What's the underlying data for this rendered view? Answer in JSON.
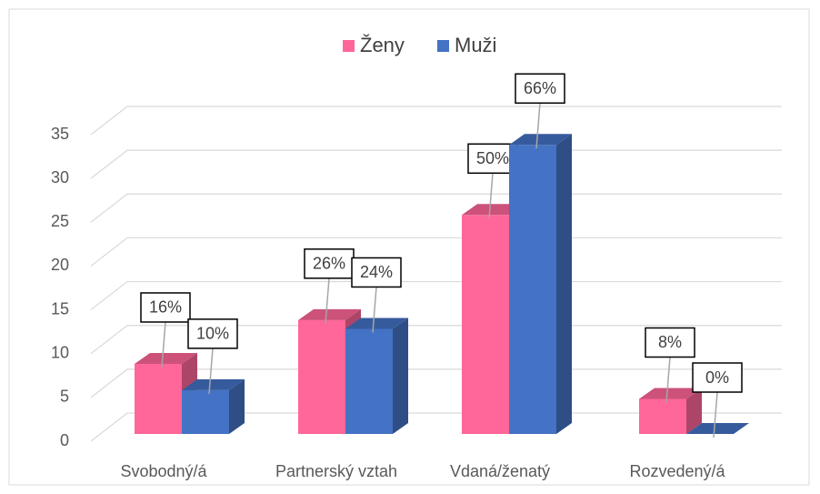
{
  "chart_data": {
    "type": "bar3d",
    "categories": [
      "Svobodný/á",
      "Partnerský vztah",
      "Vdaná/ženatý",
      "Rozvedený/á"
    ],
    "series": [
      {
        "name": "Ženy",
        "color": "#ff6699",
        "values": [
          8,
          13,
          25,
          4
        ],
        "value_labels": [
          "16%",
          "26%",
          "50%",
          "8%"
        ]
      },
      {
        "name": "Muži",
        "color": "#4472c4",
        "values": [
          5,
          12,
          33,
          0
        ],
        "value_labels": [
          "10%",
          "24%",
          "66%",
          "0%"
        ]
      }
    ],
    "ylim": [
      0,
      35
    ],
    "yticks": [
      0,
      5,
      10,
      15,
      20,
      25,
      30,
      35
    ],
    "grid": true,
    "legend": "top"
  }
}
